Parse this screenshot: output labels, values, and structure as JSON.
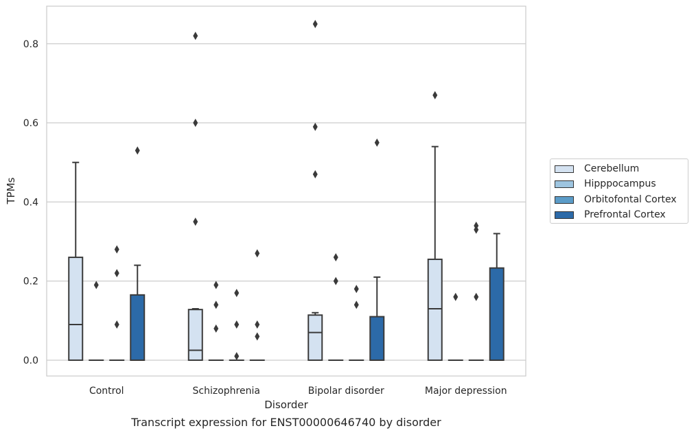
{
  "caption": "Transcript expression for ENST00000646740 by disorder",
  "chart_data": {
    "type": "boxplot",
    "xlabel": "Disorder",
    "ylabel": "TPMs",
    "ylim": [
      -0.04,
      0.895
    ],
    "yticks": [
      0.0,
      0.2,
      0.4,
      0.6,
      0.8
    ],
    "ytick_labels": [
      "0.0",
      "0.2",
      "0.4",
      "0.6",
      "0.8"
    ],
    "grid": "horizontal",
    "legend_position": "right",
    "categories": [
      "Control",
      "Schizophrenia",
      "Bipolar disorder",
      "Major depression"
    ],
    "series": [
      {
        "name": "Cerebellum",
        "color": "#d4e2f1",
        "boxes": [
          {
            "q1": 0.0,
            "median": 0.09,
            "q3": 0.26,
            "whisker_low": 0.0,
            "whisker_high": 0.5,
            "outliers": []
          },
          {
            "q1": 0.0,
            "median": 0.025,
            "q3": 0.128,
            "whisker_low": 0.0,
            "whisker_high": 0.13,
            "outliers": [
              0.82,
              0.6,
              0.35
            ]
          },
          {
            "q1": 0.0,
            "median": 0.07,
            "q3": 0.114,
            "whisker_low": 0.0,
            "whisker_high": 0.12,
            "outliers": [
              0.85,
              0.59,
              0.47
            ]
          },
          {
            "q1": 0.0,
            "median": 0.13,
            "q3": 0.255,
            "whisker_low": 0.0,
            "whisker_high": 0.54,
            "outliers": [
              0.67
            ]
          }
        ]
      },
      {
        "name": "Hipppocampus",
        "color": "#9ec5e0",
        "boxes": [
          {
            "q1": 0.0,
            "median": 0.0,
            "q3": 0.0,
            "whisker_low": 0.0,
            "whisker_high": 0.0,
            "outliers": [
              0.19
            ]
          },
          {
            "q1": 0.0,
            "median": 0.0,
            "q3": 0.0,
            "whisker_low": 0.0,
            "whisker_high": 0.0,
            "outliers": [
              0.19,
              0.14,
              0.08
            ]
          },
          {
            "q1": 0.0,
            "median": 0.0,
            "q3": 0.0,
            "whisker_low": 0.0,
            "whisker_high": 0.0,
            "outliers": [
              0.26,
              0.2
            ]
          },
          {
            "q1": 0.0,
            "median": 0.0,
            "q3": 0.0,
            "whisker_low": 0.0,
            "whisker_high": 0.0,
            "outliers": [
              0.16
            ]
          }
        ]
      },
      {
        "name": "Orbitofontal Cortex",
        "color": "#5b9cc8",
        "boxes": [
          {
            "q1": 0.0,
            "median": 0.0,
            "q3": 0.0,
            "whisker_low": 0.0,
            "whisker_high": 0.0,
            "outliers": [
              0.28,
              0.22,
              0.09
            ]
          },
          {
            "q1": 0.0,
            "median": 0.0,
            "q3": 0.0,
            "whisker_low": 0.0,
            "whisker_high": 0.0,
            "outliers": [
              0.17,
              0.09,
              0.01
            ]
          },
          {
            "q1": 0.0,
            "median": 0.0,
            "q3": 0.0,
            "whisker_low": 0.0,
            "whisker_high": 0.0,
            "outliers": [
              0.18,
              0.14
            ]
          },
          {
            "q1": 0.0,
            "median": 0.0,
            "q3": 0.0,
            "whisker_low": 0.0,
            "whisker_high": 0.0,
            "outliers": [
              0.34,
              0.33,
              0.16
            ]
          }
        ]
      },
      {
        "name": "Prefrontal Cortex",
        "color": "#2c6aa8",
        "boxes": [
          {
            "q1": 0.0,
            "median": 0.0,
            "q3": 0.165,
            "whisker_low": 0.0,
            "whisker_high": 0.24,
            "outliers": [
              0.53
            ]
          },
          {
            "q1": 0.0,
            "median": 0.0,
            "q3": 0.0,
            "whisker_low": 0.0,
            "whisker_high": 0.0,
            "outliers": [
              0.27,
              0.09,
              0.06
            ]
          },
          {
            "q1": 0.0,
            "median": 0.0,
            "q3": 0.11,
            "whisker_low": 0.0,
            "whisker_high": 0.21,
            "outliers": [
              0.55
            ]
          },
          {
            "q1": 0.0,
            "median": 0.0,
            "q3": 0.233,
            "whisker_low": 0.0,
            "whisker_high": 0.32,
            "outliers": []
          }
        ]
      }
    ]
  }
}
